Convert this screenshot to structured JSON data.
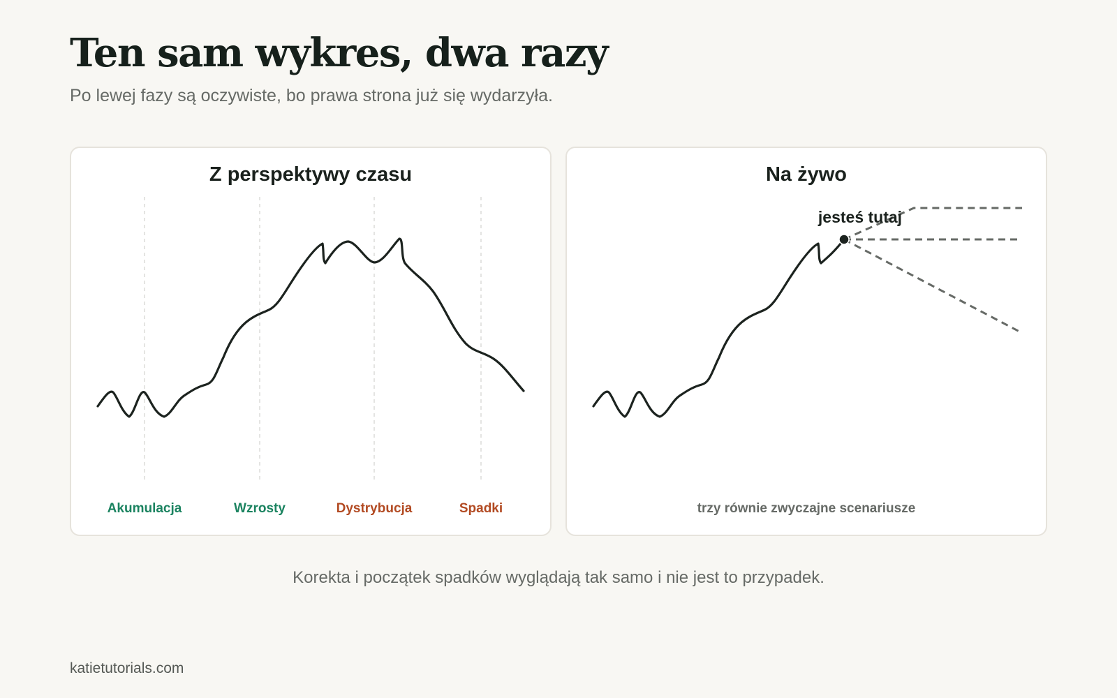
{
  "header": {
    "title": "Ten sam wykres, dwa razy",
    "subtitle": "Po lewej fazy są oczywiste, bo prawa strona już się wydarzyła."
  },
  "left_panel": {
    "title": "Z perspektywy czasu",
    "phases": [
      {
        "label": "Akumulacja",
        "color": "#1b8360"
      },
      {
        "label": "Wzrosty",
        "color": "#1b8360"
      },
      {
        "label": "Dystrybucja",
        "color": "#b24a22"
      },
      {
        "label": "Spadki",
        "color": "#b24a22"
      }
    ]
  },
  "right_panel": {
    "title": "Na żywo",
    "marker_label": "jesteś tutaj",
    "caption": "trzy równie zwyczajne scenariusze"
  },
  "footnote": "Korekta i początek spadków wyglądają tak samo i nie jest to przypadek.",
  "credit": "katietutorials.com",
  "colors": {
    "line": "#1c231f",
    "scenario": "#666a66",
    "divider": "#dcdcd8"
  }
}
